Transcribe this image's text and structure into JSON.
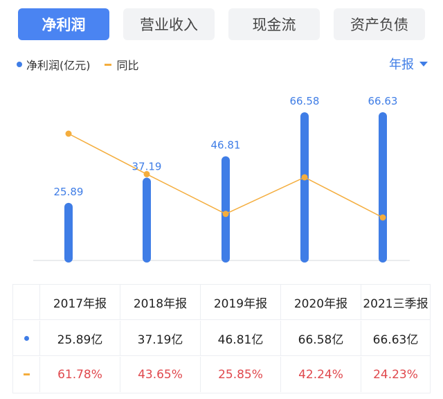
{
  "tabs": [
    {
      "label": "净利润",
      "active": true
    },
    {
      "label": "营业收入",
      "active": false
    },
    {
      "label": "现金流",
      "active": false
    },
    {
      "label": "资产负债",
      "active": false
    }
  ],
  "legend": {
    "bar": "净利润(亿元)",
    "line": "同比"
  },
  "period_selector": {
    "label": "年报"
  },
  "colors": {
    "bar": "#3f7de6",
    "line": "#f4ad3d",
    "active_tab": "#4a84f2",
    "negative_text": "#e0484d"
  },
  "chart_data": {
    "type": "bar",
    "categories": [
      "2017年报",
      "2018年报",
      "2019年报",
      "2020年报",
      "2021三季报"
    ],
    "series": [
      {
        "name": "净利润(亿元)",
        "type": "bar",
        "values": [
          25.89,
          37.19,
          46.81,
          66.58,
          66.63
        ],
        "labels": [
          "25.89",
          "37.19",
          "46.81",
          "66.58",
          "66.63"
        ]
      },
      {
        "name": "同比",
        "type": "line",
        "values": [
          61.78,
          43.65,
          25.85,
          42.24,
          24.23
        ]
      }
    ]
  },
  "table": {
    "headers": [
      "2017年报",
      "2018年报",
      "2019年报",
      "2020年报",
      "2021三季报"
    ],
    "values": [
      "25.89亿",
      "37.19亿",
      "46.81亿",
      "66.58亿",
      "66.63亿"
    ],
    "growth": [
      "61.78%",
      "43.65%",
      "25.85%",
      "42.24%",
      "24.23%"
    ]
  }
}
